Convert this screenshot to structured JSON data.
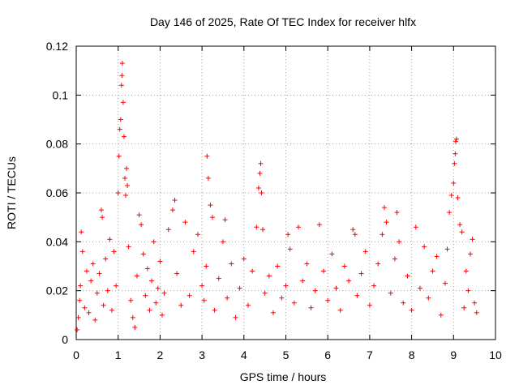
{
  "chart_data": {
    "type": "scatter",
    "title": "Day 146 of 2025, Rate Of TEC Index for receiver hlfx",
    "xlabel": "GPS time / hours",
    "ylabel": "ROTI / TECUs",
    "xlim": [
      0,
      10
    ],
    "ylim": [
      0,
      0.12
    ],
    "x_ticks": [
      "0",
      "1",
      "2",
      "3",
      "4",
      "5",
      "6",
      "7",
      "8",
      "9",
      "10"
    ],
    "y_ticks": [
      "0",
      "0.02",
      "0.04",
      "0.06",
      "0.08",
      "0.1",
      "0.12"
    ],
    "grid": true,
    "marker": "+",
    "color": "#ff0000",
    "series": [
      {
        "name": "ROTI",
        "points": [
          [
            0.02,
            0.004
          ],
          [
            0.05,
            0.009
          ],
          [
            0.08,
            0.016
          ],
          [
            0.1,
            0.022
          ],
          [
            0.12,
            0.044
          ],
          [
            0.15,
            0.036
          ],
          [
            0.2,
            0.013
          ],
          [
            0.25,
            0.028
          ],
          [
            0.3,
            0.011
          ],
          [
            0.35,
            0.024
          ],
          [
            0.4,
            0.031
          ],
          [
            0.45,
            0.008
          ],
          [
            0.5,
            0.019
          ],
          [
            0.55,
            0.027
          ],
          [
            0.6,
            0.053
          ],
          [
            0.62,
            0.05
          ],
          [
            0.65,
            0.014
          ],
          [
            0.7,
            0.033
          ],
          [
            0.75,
            0.02
          ],
          [
            0.8,
            0.041
          ],
          [
            0.85,
            0.012
          ],
          [
            0.9,
            0.036
          ],
          [
            0.95,
            0.022
          ],
          [
            1.0,
            0.06
          ],
          [
            1.02,
            0.075
          ],
          [
            1.04,
            0.086
          ],
          [
            1.06,
            0.09
          ],
          [
            1.08,
            0.104
          ],
          [
            1.09,
            0.108
          ],
          [
            1.1,
            0.113
          ],
          [
            1.12,
            0.097
          ],
          [
            1.14,
            0.083
          ],
          [
            1.16,
            0.066
          ],
          [
            1.18,
            0.059
          ],
          [
            1.2,
            0.07
          ],
          [
            1.22,
            0.063
          ],
          [
            1.25,
            0.038
          ],
          [
            1.3,
            0.016
          ],
          [
            1.35,
            0.009
          ],
          [
            1.4,
            0.005
          ],
          [
            1.45,
            0.026
          ],
          [
            1.5,
            0.051
          ],
          [
            1.55,
            0.047
          ],
          [
            1.6,
            0.035
          ],
          [
            1.65,
            0.018
          ],
          [
            1.7,
            0.029
          ],
          [
            1.75,
            0.012
          ],
          [
            1.8,
            0.024
          ],
          [
            1.85,
            0.04
          ],
          [
            1.9,
            0.015
          ],
          [
            1.95,
            0.021
          ],
          [
            2.0,
            0.032
          ],
          [
            2.05,
            0.01
          ],
          [
            2.1,
            0.019
          ],
          [
            2.2,
            0.045
          ],
          [
            2.3,
            0.053
          ],
          [
            2.35,
            0.057
          ],
          [
            2.4,
            0.027
          ],
          [
            2.5,
            0.014
          ],
          [
            2.6,
            0.048
          ],
          [
            2.7,
            0.018
          ],
          [
            2.8,
            0.036
          ],
          [
            2.9,
            0.043
          ],
          [
            3.0,
            0.022
          ],
          [
            3.05,
            0.016
          ],
          [
            3.1,
            0.03
          ],
          [
            3.12,
            0.075
          ],
          [
            3.15,
            0.066
          ],
          [
            3.2,
            0.055
          ],
          [
            3.25,
            0.05
          ],
          [
            3.3,
            0.012
          ],
          [
            3.4,
            0.025
          ],
          [
            3.5,
            0.04
          ],
          [
            3.55,
            0.049
          ],
          [
            3.6,
            0.017
          ],
          [
            3.7,
            0.031
          ],
          [
            3.8,
            0.009
          ],
          [
            3.9,
            0.021
          ],
          [
            4.0,
            0.033
          ],
          [
            4.1,
            0.014
          ],
          [
            4.2,
            0.028
          ],
          [
            4.3,
            0.046
          ],
          [
            4.35,
            0.062
          ],
          [
            4.38,
            0.068
          ],
          [
            4.4,
            0.072
          ],
          [
            4.42,
            0.06
          ],
          [
            4.45,
            0.045
          ],
          [
            4.5,
            0.019
          ],
          [
            4.6,
            0.026
          ],
          [
            4.7,
            0.011
          ],
          [
            4.8,
            0.03
          ],
          [
            4.9,
            0.017
          ],
          [
            5.0,
            0.022
          ],
          [
            5.05,
            0.043
          ],
          [
            5.1,
            0.037
          ],
          [
            5.2,
            0.015
          ],
          [
            5.3,
            0.046
          ],
          [
            5.4,
            0.024
          ],
          [
            5.5,
            0.031
          ],
          [
            5.6,
            0.013
          ],
          [
            5.7,
            0.02
          ],
          [
            5.8,
            0.047
          ],
          [
            5.9,
            0.028
          ],
          [
            6.0,
            0.016
          ],
          [
            6.1,
            0.035
          ],
          [
            6.2,
            0.021
          ],
          [
            6.3,
            0.012
          ],
          [
            6.4,
            0.03
          ],
          [
            6.5,
            0.024
          ],
          [
            6.6,
            0.045
          ],
          [
            6.65,
            0.043
          ],
          [
            6.7,
            0.018
          ],
          [
            6.8,
            0.027
          ],
          [
            6.9,
            0.036
          ],
          [
            7.0,
            0.014
          ],
          [
            7.1,
            0.022
          ],
          [
            7.2,
            0.031
          ],
          [
            7.3,
            0.043
          ],
          [
            7.35,
            0.054
          ],
          [
            7.4,
            0.048
          ],
          [
            7.5,
            0.019
          ],
          [
            7.6,
            0.033
          ],
          [
            7.65,
            0.052
          ],
          [
            7.7,
            0.04
          ],
          [
            7.8,
            0.015
          ],
          [
            7.9,
            0.026
          ],
          [
            8.0,
            0.012
          ],
          [
            8.1,
            0.046
          ],
          [
            8.2,
            0.021
          ],
          [
            8.3,
            0.038
          ],
          [
            8.4,
            0.017
          ],
          [
            8.5,
            0.028
          ],
          [
            8.6,
            0.034
          ],
          [
            8.7,
            0.01
          ],
          [
            8.8,
            0.023
          ],
          [
            8.85,
            0.037
          ],
          [
            8.9,
            0.052
          ],
          [
            8.95,
            0.059
          ],
          [
            9.0,
            0.064
          ],
          [
            9.02,
            0.072
          ],
          [
            9.04,
            0.076
          ],
          [
            9.05,
            0.081
          ],
          [
            9.07,
            0.082
          ],
          [
            9.1,
            0.058
          ],
          [
            9.15,
            0.047
          ],
          [
            9.2,
            0.044
          ],
          [
            9.25,
            0.013
          ],
          [
            9.3,
            0.028
          ],
          [
            9.35,
            0.02
          ],
          [
            9.4,
            0.035
          ],
          [
            9.45,
            0.041
          ],
          [
            9.5,
            0.015
          ],
          [
            9.55,
            0.011
          ]
        ]
      }
    ]
  }
}
